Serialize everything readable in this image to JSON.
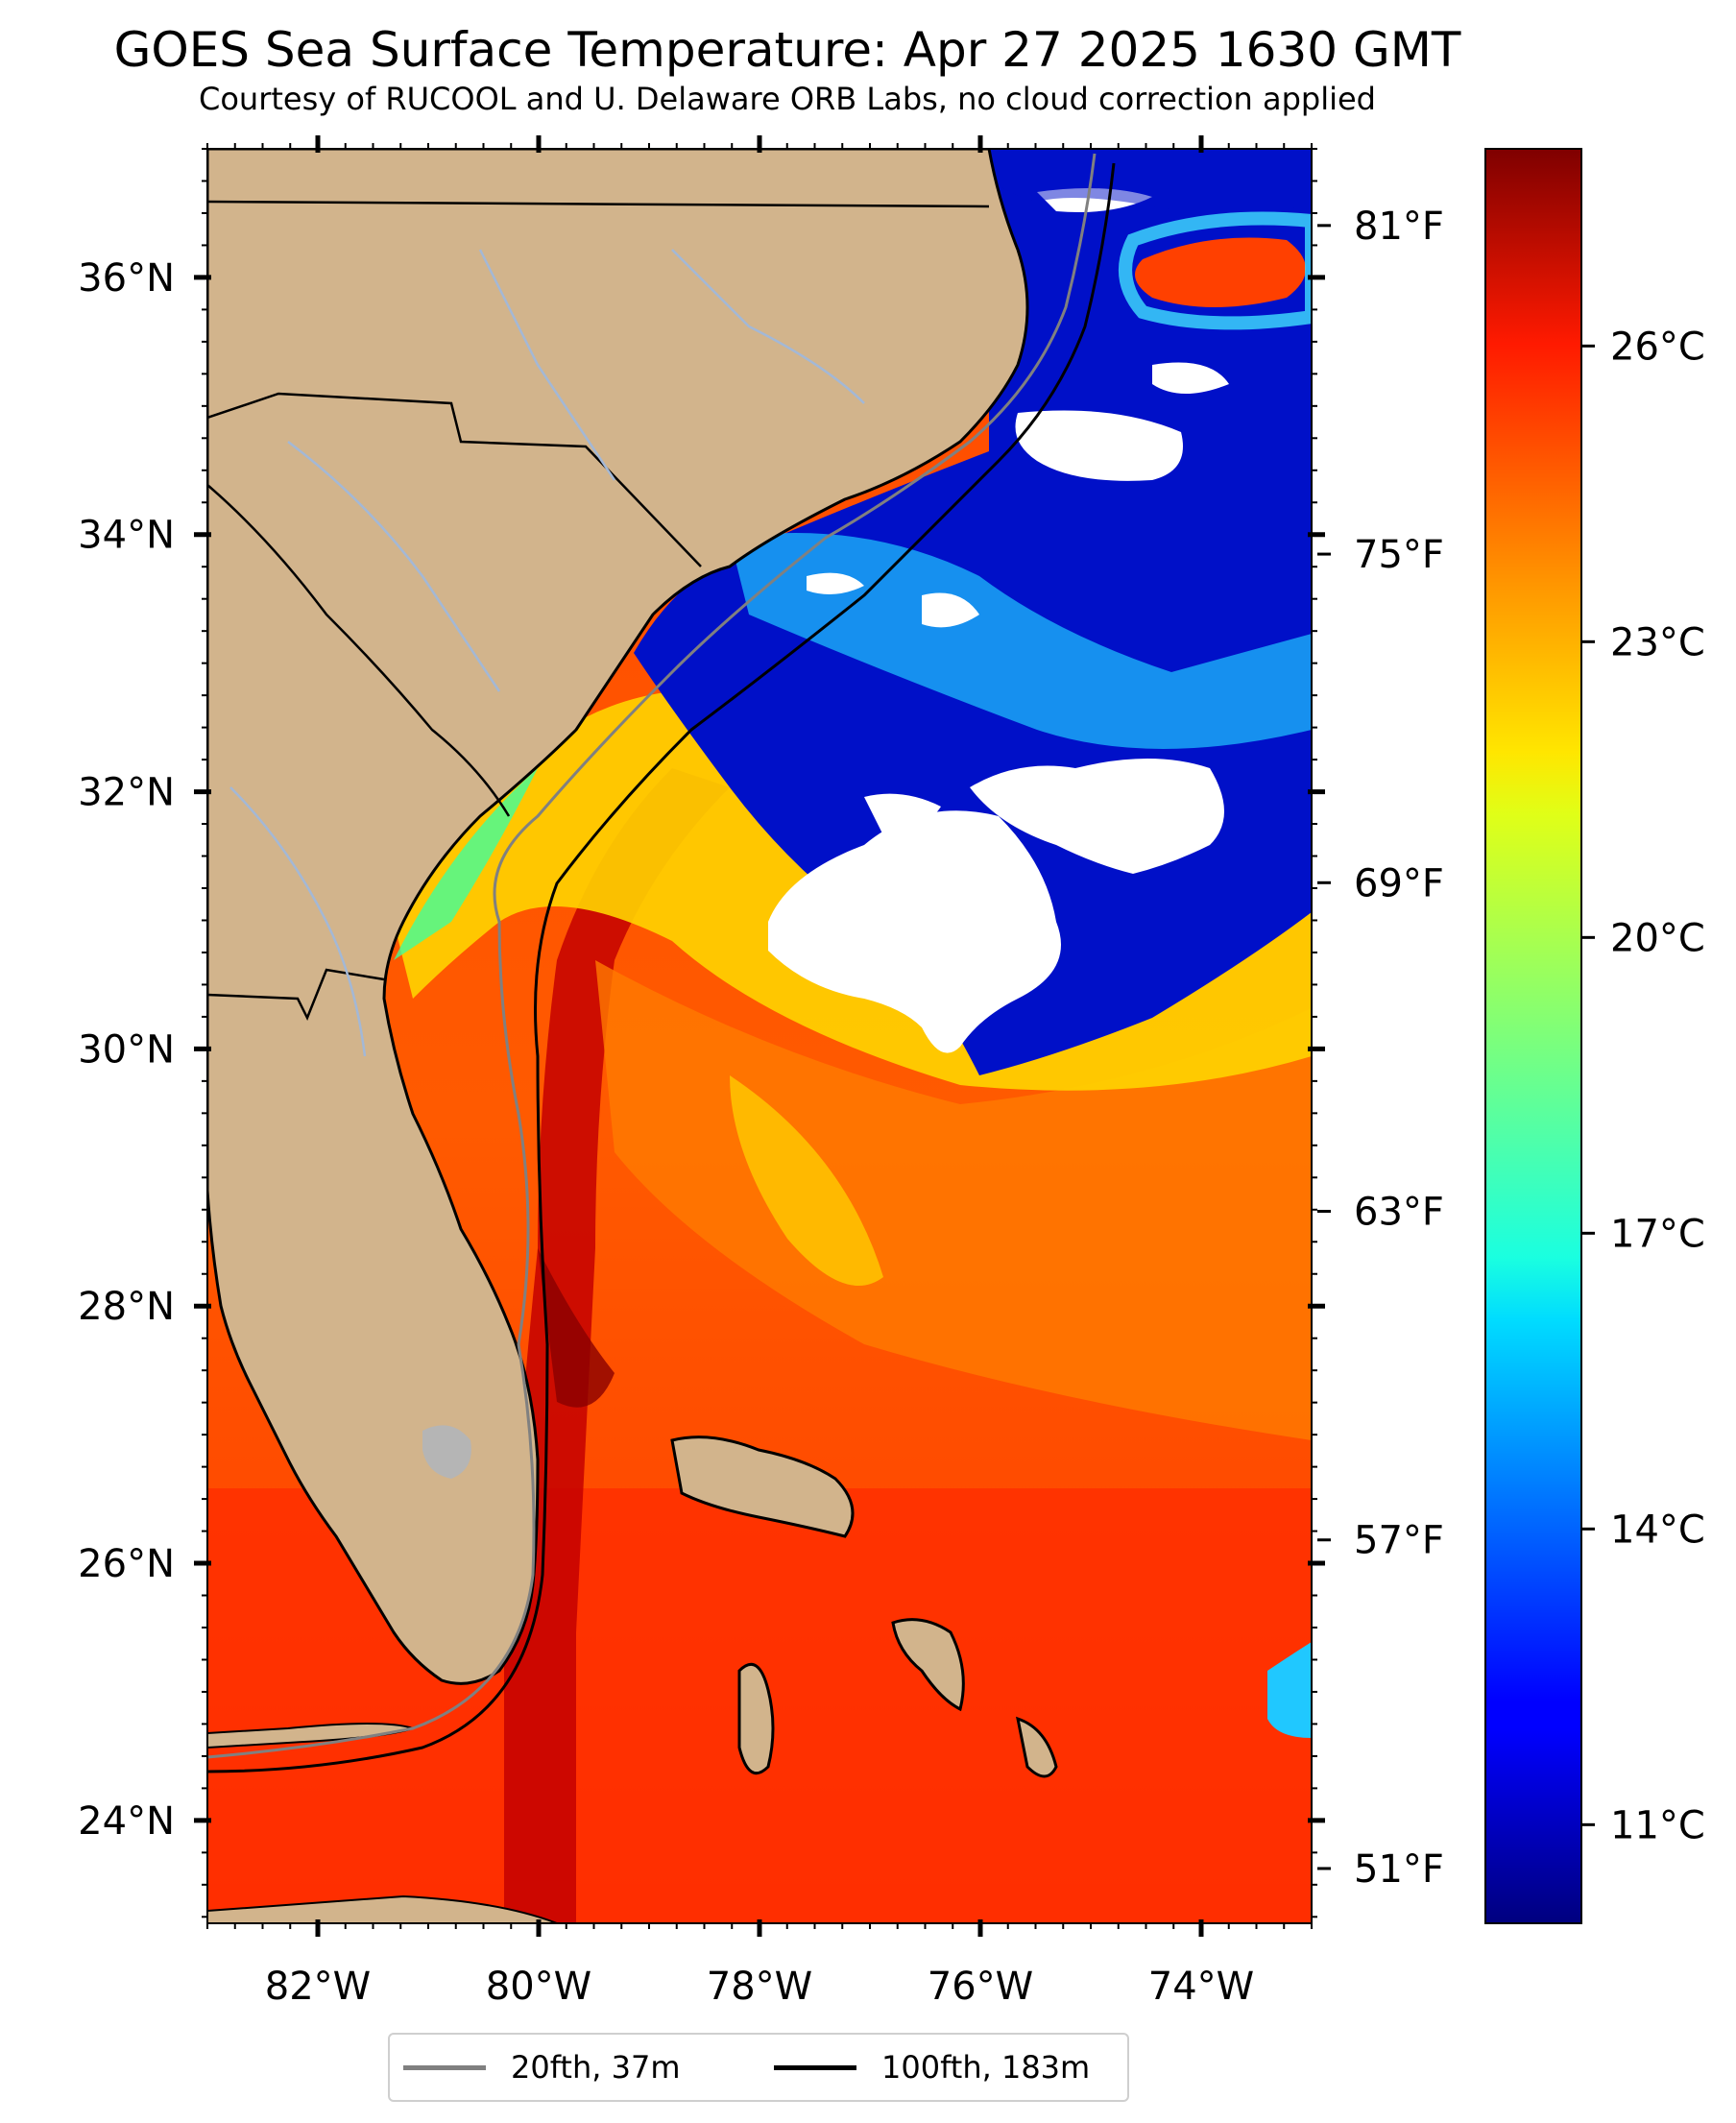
{
  "title": "GOES Sea Surface Temperature: Apr 27 2025 1630 GMT",
  "subtitle": "Courtesy of RUCOOL and U. Delaware ORB Labs, no cloud correction applied",
  "map": {
    "lon_range": [
      -83.0,
      -73.0
    ],
    "lat_range": [
      23.2,
      37.0
    ],
    "colors": {
      "land": "#d2b48c",
      "coastline": "#000000",
      "rivers": "#a3b8d6",
      "cloud_mask": "#ffffff",
      "lakes": "#b5b5b5"
    },
    "lon_ticks": [
      {
        "value": -82,
        "label": "82°W"
      },
      {
        "value": -80,
        "label": "80°W"
      },
      {
        "value": -78,
        "label": "78°W"
      },
      {
        "value": -76,
        "label": "76°W"
      },
      {
        "value": -74,
        "label": "74°W"
      }
    ],
    "lat_ticks": [
      {
        "value": 24,
        "label": "24°N"
      },
      {
        "value": 26,
        "label": "26°N"
      },
      {
        "value": 28,
        "label": "28°N"
      },
      {
        "value": 30,
        "label": "30°N"
      },
      {
        "value": 32,
        "label": "32°N"
      },
      {
        "value": 34,
        "label": "34°N"
      },
      {
        "value": 36,
        "label": "36°N"
      }
    ]
  },
  "colorbar": {
    "colormap": "jet",
    "celsius_range": [
      10.0,
      28.0
    ],
    "celsius_ticks": [
      {
        "value": 11,
        "label": "11°C"
      },
      {
        "value": 14,
        "label": "14°C"
      },
      {
        "value": 17,
        "label": "17°C"
      },
      {
        "value": 20,
        "label": "20°C"
      },
      {
        "value": 23,
        "label": "23°C"
      },
      {
        "value": 26,
        "label": "26°C"
      }
    ],
    "fahrenheit_ticks": [
      {
        "value": 51,
        "label": "51°F"
      },
      {
        "value": 57,
        "label": "57°F"
      },
      {
        "value": 63,
        "label": "63°F"
      },
      {
        "value": 69,
        "label": "69°F"
      },
      {
        "value": 75,
        "label": "75°F"
      },
      {
        "value": 81,
        "label": "81°F"
      }
    ]
  },
  "legend": {
    "items": [
      {
        "label": "20fth, 37m",
        "color": "#808080"
      },
      {
        "label": "100fth, 183m",
        "color": "#000000"
      }
    ]
  }
}
